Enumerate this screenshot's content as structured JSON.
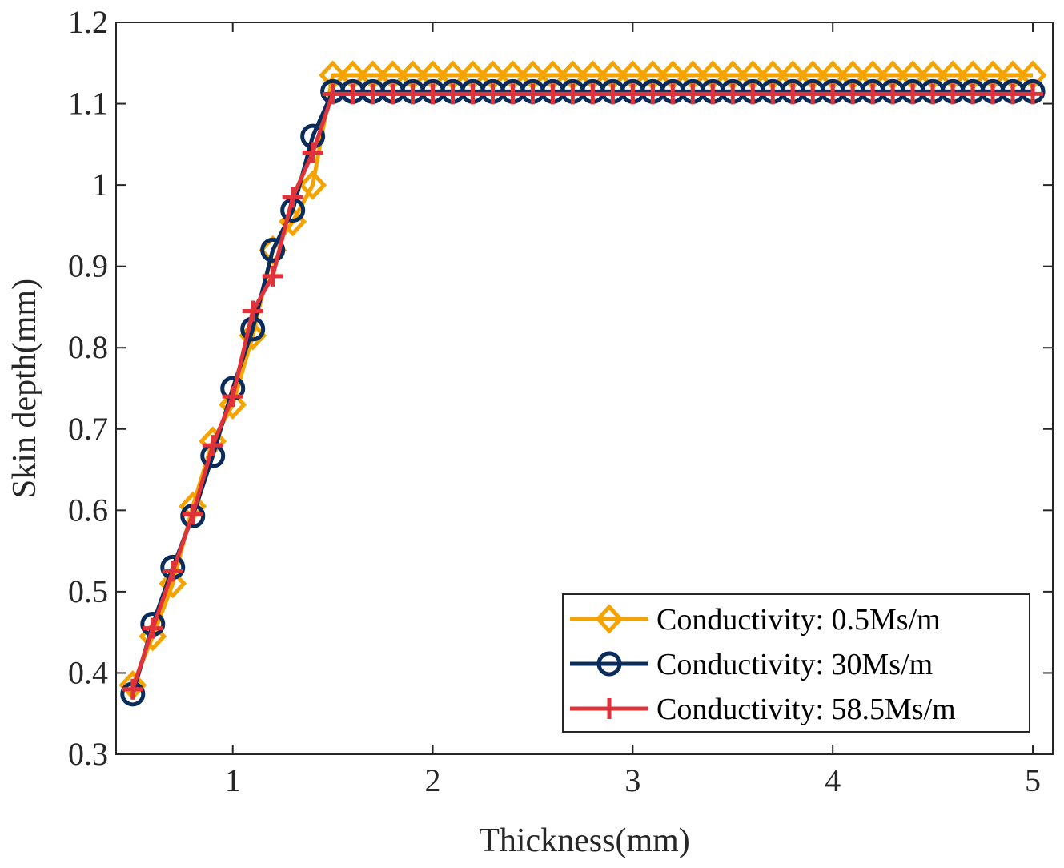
{
  "chart_data": {
    "type": "line",
    "xlabel": "Thickness(mm)",
    "ylabel": "Skin depth(mm)",
    "xlim": [
      0.4167,
      5.1
    ],
    "ylim": [
      0.3,
      1.2
    ],
    "xticks": [
      1,
      2,
      3,
      4,
      5
    ],
    "xtick_labels": [
      "1",
      "2",
      "3",
      "4",
      "5"
    ],
    "yticks": [
      0.3,
      0.4,
      0.5,
      0.6,
      0.7,
      0.8,
      0.9,
      1.0,
      1.1,
      1.2
    ],
    "ytick_labels": [
      "0.3",
      "0.4",
      "0.5",
      "0.6",
      "0.7",
      "0.8",
      "0.9",
      "1",
      "1.1",
      "1.2"
    ],
    "grid": false,
    "legend_position": "bottom-right",
    "series": [
      {
        "name": "Conductivity: 0.5Ms/m",
        "color": "#F5A300",
        "marker": "diamond",
        "x_start": 0.5,
        "x_step": 0.1,
        "count": 46,
        "rise": [
          0.385,
          0.445,
          0.51,
          0.605,
          0.685,
          0.73,
          0.815,
          0.92,
          0.955,
          1.0,
          1.135
        ],
        "plateau": 1.135
      },
      {
        "name": "Conductivity: 30Ms/m",
        "color": "#0A2C5B",
        "marker": "circle",
        "x_start": 0.5,
        "x_step": 0.1,
        "count": 46,
        "rise": [
          0.374,
          0.46,
          0.53,
          0.593,
          0.667,
          0.75,
          0.823,
          0.92,
          0.969,
          1.06,
          1.115
        ],
        "plateau": 1.115
      },
      {
        "name": "Conductivity: 58.5Ms/m",
        "color": "#E03339",
        "marker": "plus",
        "x_start": 0.5,
        "x_step": 0.1,
        "count": 46,
        "rise": [
          0.38,
          0.455,
          0.525,
          0.595,
          0.68,
          0.74,
          0.845,
          0.888,
          0.985,
          1.04,
          1.112
        ],
        "plateau": 1.112
      }
    ]
  }
}
